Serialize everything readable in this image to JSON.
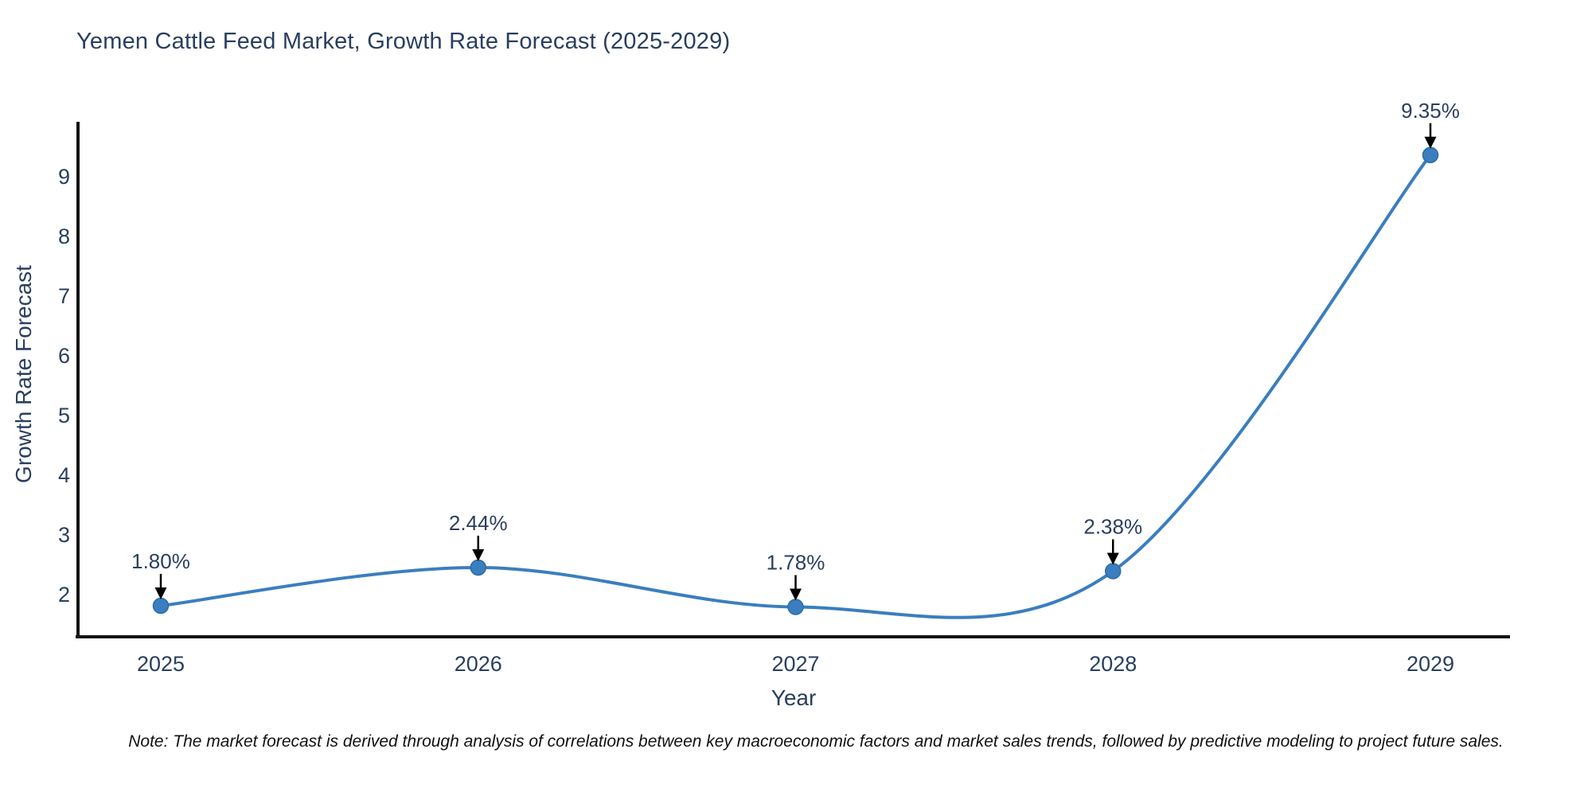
{
  "title": "Yemen Cattle Feed Market, Growth Rate Forecast (2025-2029)",
  "note": "Note: The market forecast is derived through analysis of correlations between key macroeconomic factors and market sales trends, followed by predictive modeling to project future sales.",
  "chart_data": {
    "type": "line",
    "title": "Yemen Cattle Feed Market, Growth Rate Forecast (2025-2029)",
    "xlabel": "Year",
    "ylabel": "Growth Rate Forecast",
    "x": [
      2025,
      2026,
      2027,
      2028,
      2029
    ],
    "series": [
      {
        "name": "Growth Rate Forecast",
        "values": [
          1.8,
          2.44,
          1.78,
          2.38,
          9.35
        ]
      }
    ],
    "point_labels": [
      "1.80%",
      "2.44%",
      "1.78%",
      "2.38%",
      "9.35%"
    ],
    "yticks": [
      2,
      3,
      4,
      5,
      6,
      7,
      8,
      9
    ],
    "ylim": [
      1.28,
      9.88
    ],
    "grid": false,
    "line_shape": "spline",
    "legend": "none",
    "colors": {
      "line": "#3a7ebf",
      "marker": "#3a7ebf",
      "marker_edge": "#2f6ba3",
      "axis": "#131313",
      "tick_text": "#2a3f5f",
      "annotation_text": "#2a3f5f",
      "annotation_arrow": "#000000",
      "background": "#ffffff"
    }
  }
}
